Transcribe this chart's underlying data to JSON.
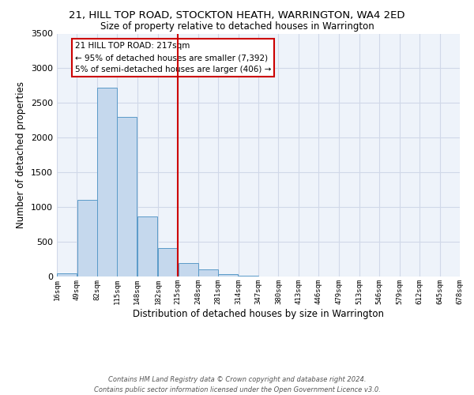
{
  "title_line1": "21, HILL TOP ROAD, STOCKTON HEATH, WARRINGTON, WA4 2ED",
  "title_line2": "Size of property relative to detached houses in Warrington",
  "xlabel": "Distribution of detached houses by size in Warrington",
  "ylabel": "Number of detached properties",
  "bar_left_edges": [
    16,
    49,
    82,
    115,
    148,
    182,
    215,
    248,
    281,
    314,
    347,
    380,
    413,
    446,
    479,
    513,
    546,
    579,
    612,
    645
  ],
  "bar_widths": [
    33,
    33,
    33,
    33,
    33,
    33,
    33,
    33,
    33,
    33,
    33,
    33,
    33,
    33,
    33,
    33,
    33,
    33,
    33,
    33
  ],
  "bar_heights": [
    40,
    1100,
    2725,
    2295,
    870,
    415,
    190,
    100,
    35,
    15,
    5,
    0,
    0,
    0,
    0,
    0,
    0,
    0,
    0,
    0
  ],
  "bar_color": "#c5d8ed",
  "bar_edge_color": "#5a9ac8",
  "ylim": [
    0,
    3500
  ],
  "xlim": [
    16,
    678
  ],
  "tick_labels": [
    "16sqm",
    "49sqm",
    "82sqm",
    "115sqm",
    "148sqm",
    "182sqm",
    "215sqm",
    "248sqm",
    "281sqm",
    "314sqm",
    "347sqm",
    "380sqm",
    "413sqm",
    "446sqm",
    "479sqm",
    "513sqm",
    "546sqm",
    "579sqm",
    "612sqm",
    "645sqm",
    "678sqm"
  ],
  "tick_positions": [
    16,
    49,
    82,
    115,
    148,
    182,
    215,
    248,
    281,
    314,
    347,
    380,
    413,
    446,
    479,
    513,
    546,
    579,
    612,
    645,
    678
  ],
  "vline_x": 215,
  "vline_color": "#cc0000",
  "annotation_title": "21 HILL TOP ROAD: 217sqm",
  "annotation_line1": "← 95% of detached houses are smaller (7,392)",
  "annotation_line2": "5% of semi-detached houses are larger (406) →",
  "footnote": "Contains HM Land Registry data © Crown copyright and database right 2024.\nContains public sector information licensed under the Open Government Licence v3.0.",
  "grid_color": "#d0d8e8",
  "bg_color": "#eef3fa"
}
